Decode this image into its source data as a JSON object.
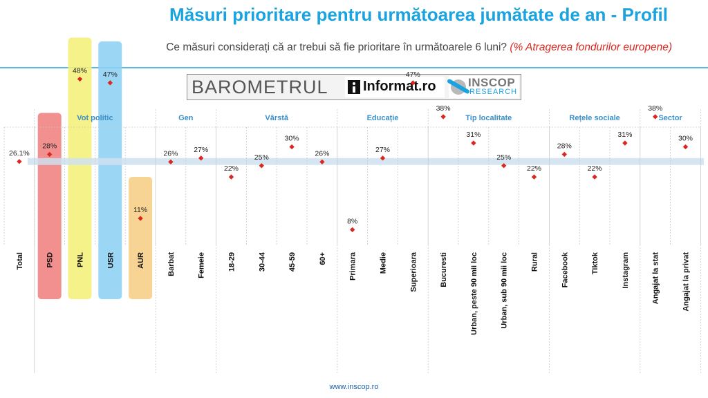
{
  "header": {
    "title": "Măsuri prioritare pentru următoarea jumătate de an - Profil",
    "subtitle": "Ce măsuri considerați că ar trebui să fie prioritare în următoarele 6 luni?",
    "subtitle_highlight": "(% Atragerea fondurilor europene)"
  },
  "logo": {
    "barometrul": "BAROMETRUL",
    "informat": "Informat.ro",
    "inscop": "INSCOP",
    "research": "RESEARCH"
  },
  "footer": {
    "url": "www.inscop.ro"
  },
  "chart_data": {
    "type": "scatter",
    "groups": [
      {
        "name": "",
        "categories": [
          "Total"
        ]
      },
      {
        "name": "Vot politic",
        "categories": [
          "PSD",
          "PNL",
          "USR",
          "AUR"
        ]
      },
      {
        "name": "Gen",
        "categories": [
          "Barbat",
          "Femeie"
        ]
      },
      {
        "name": "Vârstă",
        "categories": [
          "18-29",
          "30-44",
          "45-59",
          "60+"
        ]
      },
      {
        "name": "Educație",
        "categories": [
          "Primara",
          "Medie",
          "Superioara"
        ]
      },
      {
        "name": "Tip localitate",
        "categories": [
          "Bucuresti",
          "Urban, peste 90 mii loc",
          "Urban, sub 90 mii loc",
          "Rural"
        ]
      },
      {
        "name": "Rețele sociale",
        "categories": [
          "Facebook",
          "Tiktok",
          "Instagram"
        ]
      },
      {
        "name": "Sector",
        "categories": [
          "Angajat la stat",
          "Angajat la privat"
        ]
      }
    ],
    "categories": [
      "Total",
      "PSD",
      "PNL",
      "USR",
      "AUR",
      "Barbat",
      "Femeie",
      "18-29",
      "30-44",
      "45-59",
      "60+",
      "Primara",
      "Medie",
      "Superioara",
      "Bucuresti",
      "Urban, peste 90 mii loc",
      "Urban, sub 90 mii loc",
      "Rural",
      "Facebook",
      "Tiktok",
      "Instagram",
      "Angajat la stat",
      "Angajat la privat"
    ],
    "values": [
      26.1,
      28,
      48,
      47,
      11,
      26,
      27,
      22,
      25,
      30,
      26,
      8,
      27,
      47,
      38,
      31,
      25,
      22,
      28,
      22,
      31,
      38,
      30
    ],
    "labels": [
      "26.1%",
      "28%",
      "48%",
      "47%",
      "11%",
      "26%",
      "27%",
      "22%",
      "25%",
      "30%",
      "26%",
      "8%",
      "27%",
      "47%",
      "38%",
      "31%",
      "25%",
      "22%",
      "28%",
      "22%",
      "31%",
      "38%",
      "30%"
    ],
    "reference_value": 26.1,
    "ylim": [
      0,
      70
    ],
    "party_highlight_colors": {
      "PSD": "#f08080",
      "PNL": "#f5f07a",
      "USR": "#8dd1f3",
      "AUR": "#f6ce85"
    },
    "colors": {
      "marker": "#d9281f",
      "band": "#cfe0f0",
      "group_label": "#3a8fc9",
      "grid": "#c9c9c9"
    }
  }
}
